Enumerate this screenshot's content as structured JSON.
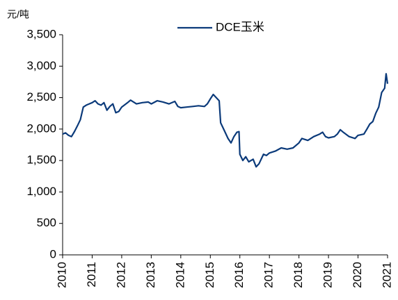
{
  "chart_data": {
    "type": "line",
    "y_unit": "元/吨",
    "xlim": [
      2010,
      2021
    ],
    "xticks": [
      2010,
      2011,
      2012,
      2013,
      2014,
      2015,
      2016,
      2017,
      2018,
      2019,
      2020,
      2021
    ],
    "ylim": [
      0,
      3500
    ],
    "yticks": [
      0,
      500,
      {
        "value": 1000,
        "label": "1,000"
      },
      {
        "value": 1500,
        "label": "1,500"
      },
      {
        "value": 2000,
        "label": "2,000"
      },
      {
        "value": 2500,
        "label": "2,500"
      },
      {
        "value": 3000,
        "label": "3,000"
      },
      {
        "value": 3500,
        "label": "3,500"
      }
    ],
    "legend": "top",
    "x": [
      2010.0,
      2010.1,
      2010.2,
      2010.3,
      2010.4,
      2010.5,
      2010.6,
      2010.7,
      2010.8,
      2010.9,
      2011.0,
      2011.1,
      2011.2,
      2011.3,
      2011.4,
      2011.5,
      2011.6,
      2011.7,
      2011.8,
      2011.9,
      2012.0,
      2012.2,
      2012.3,
      2012.5,
      2012.7,
      2012.9,
      2013.0,
      2013.2,
      2013.4,
      2013.6,
      2013.8,
      2013.9,
      2014.0,
      2014.2,
      2014.4,
      2014.6,
      2014.8,
      2014.9,
      2015.0,
      2015.1,
      2015.2,
      2015.3,
      2015.35,
      2015.45,
      2015.6,
      2015.7,
      2015.8,
      2015.9,
      2015.97,
      2016.0,
      2016.1,
      2016.2,
      2016.3,
      2016.45,
      2016.55,
      2016.65,
      2016.8,
      2016.9,
      2017.0,
      2017.2,
      2017.4,
      2017.6,
      2017.8,
      2017.9,
      2018.0,
      2018.1,
      2018.3,
      2018.5,
      2018.7,
      2018.8,
      2018.9,
      2019.0,
      2019.2,
      2019.3,
      2019.4,
      2019.5,
      2019.7,
      2019.9,
      2020.0,
      2020.2,
      2020.3,
      2020.4,
      2020.5,
      2020.6,
      2020.7,
      2020.8,
      2020.9,
      2020.95,
      2021.0
    ],
    "series": [
      {
        "name": "DCE玉米",
        "color": "#0b3a7a",
        "values": [
          1920,
          1940,
          1900,
          1880,
          1960,
          2050,
          2150,
          2350,
          2380,
          2400,
          2420,
          2450,
          2400,
          2380,
          2420,
          2300,
          2360,
          2400,
          2260,
          2280,
          2350,
          2420,
          2460,
          2400,
          2420,
          2430,
          2400,
          2450,
          2430,
          2400,
          2440,
          2360,
          2340,
          2350,
          2360,
          2370,
          2360,
          2400,
          2480,
          2550,
          2500,
          2450,
          2100,
          2000,
          1850,
          1780,
          1880,
          1950,
          1960,
          1600,
          1500,
          1560,
          1480,
          1520,
          1400,
          1450,
          1600,
          1580,
          1620,
          1650,
          1700,
          1680,
          1700,
          1740,
          1780,
          1850,
          1820,
          1880,
          1920,
          1950,
          1880,
          1860,
          1880,
          1920,
          1990,
          1950,
          1880,
          1850,
          1900,
          1920,
          2000,
          2080,
          2120,
          2250,
          2350,
          2580,
          2650,
          2880,
          2720
        ]
      }
    ]
  }
}
